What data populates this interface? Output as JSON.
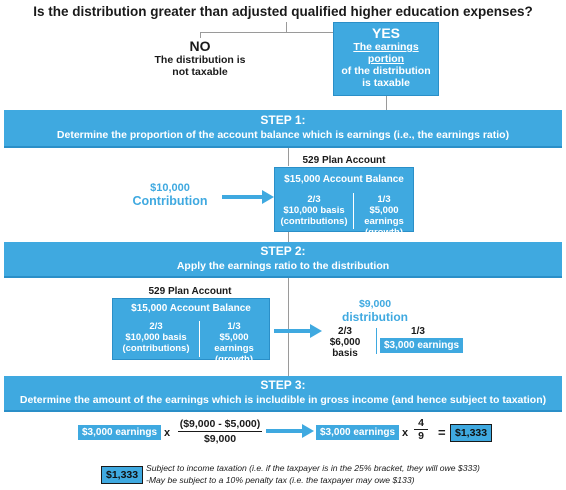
{
  "title": "Is the distribution greater than adjusted qualified higher education expenses?",
  "no_box": {
    "heading": "NO",
    "line1": "The distribution is",
    "line2": "not taxable"
  },
  "yes_box": {
    "heading": "YES",
    "line1": "The earnings portion",
    "line2": "of the distribution",
    "line3": "is taxable"
  },
  "step1": {
    "heading": "STEP 1:",
    "subheading": "Determine the proportion of the account balance which is earnings (i.e., the earnings ratio)",
    "contribution_amount": "$10,000",
    "contribution_label": "Contribution",
    "account_title": "529 Plan Account",
    "balance": "$15,000 Account Balance",
    "left_fraction": "2/3",
    "left_line1": "$10,000 basis",
    "left_line2": "(contributions)",
    "right_fraction": "1/3",
    "right_line1": "$5,000 earnings",
    "right_line2": "(growth)"
  },
  "step2": {
    "heading": "STEP 2:",
    "subheading": "Apply the earnings ratio to the distribution",
    "account_title": "529 Plan Account",
    "balance": "$15,000 Account Balance",
    "left_fraction": "2/3",
    "left_line1": "$10,000 basis",
    "left_line2": "(contributions)",
    "right_fraction": "1/3",
    "right_line1": "$5,000 earnings",
    "right_line2": "(growth)",
    "dist_amount": "$9,000",
    "dist_label": "distribution",
    "res_left_fraction": "2/3",
    "res_left_value": "$6,000 basis",
    "res_right_fraction": "1/3",
    "res_right_value": "$3,000 earnings"
  },
  "step3": {
    "heading": "STEP 3:",
    "subheading": "Determine the amount of the earnings which is includible in gross income (and hence subject to taxation)",
    "earnings_chip": "$3,000 earnings",
    "times": "x",
    "numerator": "($9,000 - $5,000)",
    "denominator": "$9,000",
    "earnings_chip2": "$3,000 earnings",
    "times2": "x",
    "frac_num": "4",
    "frac_den": "9",
    "equals": "=",
    "result": "$1,333"
  },
  "footnote": {
    "chip": "$1,333",
    "line1": "Subject to income taxation (i.e. if the taxpayer is in the 25% bracket, they will owe $333)",
    "line2": "-May be subject to a 10% penalty tax (i.e. the taxpayer may owe $133)"
  },
  "colors": {
    "accent": "#3fa9e0",
    "accent_dark": "#2a8fc8"
  }
}
